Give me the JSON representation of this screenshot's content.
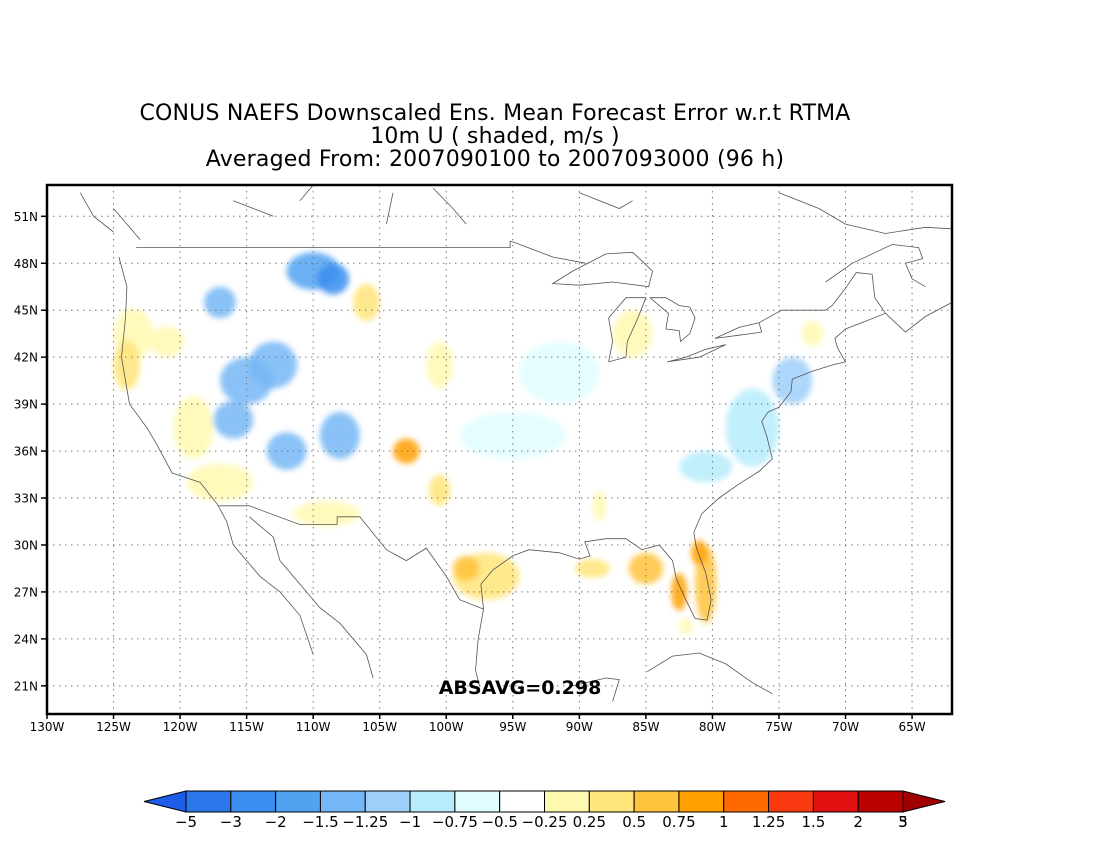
{
  "title": {
    "line1": "CONUS NAEFS Downscaled Ens. Mean Forecast Error w.r.t RTMA",
    "line2": "10m U ( shaded, m/s )",
    "line3": "Averaged From: 2007090100 to 2007093000 (96 h)"
  },
  "map": {
    "lon_range": [
      -130,
      -62
    ],
    "lat_range": [
      19.2,
      53.0
    ],
    "lon_ticks": [
      "130W",
      "125W",
      "120W",
      "115W",
      "110W",
      "105W",
      "100W",
      "95W",
      "90W",
      "85W",
      "80W",
      "75W",
      "70W",
      "65W"
    ],
    "lon_tick_values": [
      -130,
      -125,
      -120,
      -115,
      -110,
      -105,
      -100,
      -95,
      -90,
      -85,
      -80,
      -75,
      -70,
      -65
    ],
    "lat_ticks": [
      "51N",
      "48N",
      "45N",
      "42N",
      "39N",
      "36N",
      "33N",
      "30N",
      "27N",
      "24N",
      "21N"
    ],
    "lat_tick_values": [
      51,
      48,
      45,
      42,
      39,
      36,
      33,
      30,
      27,
      24,
      21
    ],
    "grid": "dotted",
    "annotation": "ABSAVG=0.298",
    "field_regions": [
      {
        "lon": -123.5,
        "lat": 47.5,
        "rx": 1.2,
        "ry": 1.5,
        "level": 8
      },
      {
        "lon": -123.5,
        "lat": 43.5,
        "rx": 1.5,
        "ry": 1.6,
        "level": 9
      },
      {
        "lon": -124.0,
        "lat": 41.5,
        "rx": 1.0,
        "ry": 1.6,
        "level": 10
      },
      {
        "lon": -121.0,
        "lat": 43.0,
        "rx": 1.3,
        "ry": 1.0,
        "level": 9
      },
      {
        "lon": -119.0,
        "lat": 37.5,
        "rx": 1.5,
        "ry": 2.0,
        "level": 9
      },
      {
        "lon": -117.0,
        "lat": 34.0,
        "rx": 2.5,
        "ry": 1.2,
        "level": 9
      },
      {
        "lon": -109.0,
        "lat": 32.0,
        "rx": 2.5,
        "ry": 0.8,
        "level": 9
      },
      {
        "lon": -117.0,
        "lat": 45.5,
        "rx": 1.2,
        "ry": 1.0,
        "level": 4
      },
      {
        "lon": -115.0,
        "lat": 40.5,
        "rx": 2.0,
        "ry": 1.5,
        "level": 4
      },
      {
        "lon": -113.0,
        "lat": 41.5,
        "rx": 1.8,
        "ry": 1.5,
        "level": 4
      },
      {
        "lon": -110.0,
        "lat": 47.5,
        "rx": 2.0,
        "ry": 1.2,
        "level": 3
      },
      {
        "lon": -108.5,
        "lat": 47.0,
        "rx": 1.2,
        "ry": 1.0,
        "level": 2
      },
      {
        "lon": -116.0,
        "lat": 38.0,
        "rx": 1.5,
        "ry": 1.2,
        "level": 4
      },
      {
        "lon": -108.0,
        "lat": 37.0,
        "rx": 1.5,
        "ry": 1.5,
        "level": 4
      },
      {
        "lon": -112.0,
        "lat": 36.0,
        "rx": 1.5,
        "ry": 1.2,
        "level": 4
      },
      {
        "lon": -106.0,
        "lat": 45.5,
        "rx": 1.0,
        "ry": 1.2,
        "level": 10
      },
      {
        "lon": -100.5,
        "lat": 41.5,
        "rx": 1.0,
        "ry": 1.5,
        "level": 9
      },
      {
        "lon": -103.0,
        "lat": 36.0,
        "rx": 1.0,
        "ry": 0.8,
        "level": 12
      },
      {
        "lon": -100.5,
        "lat": 33.5,
        "rx": 0.8,
        "ry": 1.0,
        "level": 10
      },
      {
        "lon": -97.0,
        "lat": 28.0,
        "rx": 2.5,
        "ry": 1.5,
        "level": 10
      },
      {
        "lon": -98.5,
        "lat": 28.5,
        "rx": 1.0,
        "ry": 0.8,
        "level": 11
      },
      {
        "lon": -89.0,
        "lat": 28.5,
        "rx": 1.3,
        "ry": 0.6,
        "level": 10
      },
      {
        "lon": -85.0,
        "lat": 28.5,
        "rx": 1.3,
        "ry": 1.0,
        "level": 11
      },
      {
        "lon": -82.5,
        "lat": 27.0,
        "rx": 0.6,
        "ry": 1.2,
        "level": 12
      },
      {
        "lon": -80.5,
        "lat": 27.5,
        "rx": 0.8,
        "ry": 2.5,
        "level": 11
      },
      {
        "lon": -81.0,
        "lat": 29.5,
        "rx": 0.6,
        "ry": 0.8,
        "level": 12
      },
      {
        "lon": -82.0,
        "lat": 24.8,
        "rx": 0.5,
        "ry": 0.5,
        "level": 9
      },
      {
        "lon": -86.0,
        "lat": 43.5,
        "rx": 1.5,
        "ry": 1.5,
        "level": 9
      },
      {
        "lon": -85.0,
        "lat": 46.5,
        "rx": 2.5,
        "ry": 1.0,
        "level": 8
      },
      {
        "lon": -88.5,
        "lat": 32.5,
        "rx": 0.5,
        "ry": 1.0,
        "level": 9
      },
      {
        "lon": -77.0,
        "lat": 37.5,
        "rx": 2.0,
        "ry": 2.5,
        "level": 6
      },
      {
        "lon": -80.5,
        "lat": 35.0,
        "rx": 2.0,
        "ry": 1.0,
        "level": 6
      },
      {
        "lon": -74.0,
        "lat": 40.5,
        "rx": 1.5,
        "ry": 1.5,
        "level": 5
      },
      {
        "lon": -72.5,
        "lat": 43.5,
        "rx": 0.8,
        "ry": 0.8,
        "level": 9
      },
      {
        "lon": -91.5,
        "lat": 41.0,
        "rx": 3.0,
        "ry": 2.0,
        "level": 7
      },
      {
        "lon": -95.0,
        "lat": 37.0,
        "rx": 4.0,
        "ry": 1.5,
        "level": 7
      }
    ]
  },
  "colorbar": {
    "labels": [
      "−5",
      "−3",
      "−2",
      "−1.5",
      "−1.25",
      "−1",
      "−0.75",
      "−0.5",
      "−0.25",
      "0.25",
      "0.5",
      "0.75",
      "1",
      "1.25",
      "1.5",
      "2",
      "3",
      "5"
    ],
    "colors": [
      "#1e5de8",
      "#2a78eb",
      "#3b8ef0",
      "#52a2f2",
      "#75b7f6",
      "#9dcff9",
      "#b7ecfb",
      "#e0fdff",
      "#ffffff",
      "#fff9b0",
      "#ffe57a",
      "#ffc33c",
      "#ffa000",
      "#ff6a00",
      "#f93a10",
      "#e01010",
      "#bb0000",
      "#a00000"
    ]
  }
}
